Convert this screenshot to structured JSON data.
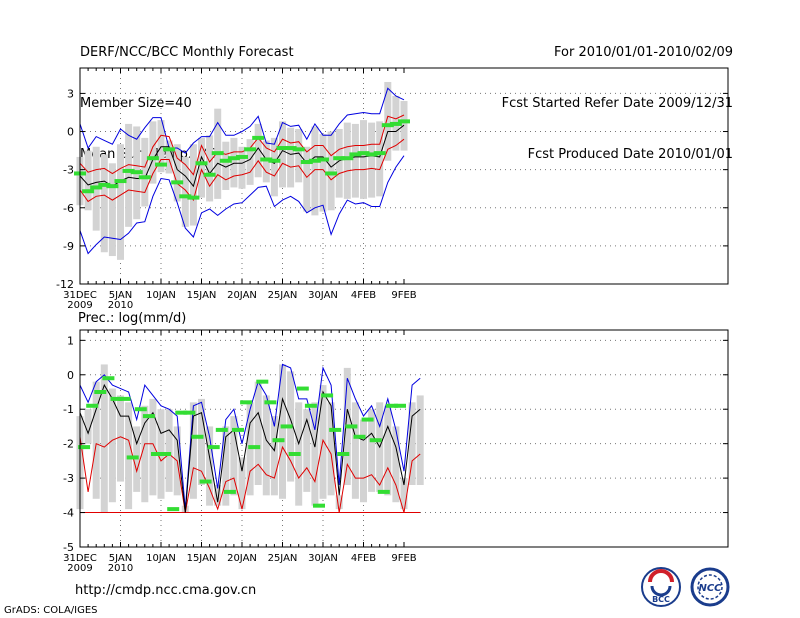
{
  "header": {
    "left": [
      "DERF/NCC/BCC Monthly Forecast",
      "Member Size=40",
      "Mean Surf. Temp.: °C"
    ],
    "right": [
      "For 2010/01/01-2010/02/09",
      "Fcst Started Refer Date 2009/12/31",
      "Fcst Produced Date 2010/01/01"
    ]
  },
  "footer": {
    "url": "http://cmdp.ncc.cma.gov.cn",
    "credit": "GrADS: COLA/IGES",
    "logo1_text": "BCC",
    "logo2_text": "NCC"
  },
  "colors": {
    "box": "#d3d3d3",
    "mean": "#000000",
    "spread": "#e00000",
    "extreme": "#0000e0",
    "marker": "#33dd33",
    "grid": "#777777"
  },
  "chart_data": [
    {
      "type": "box-ensemble",
      "title": "Mean Surf. Temp.: °C",
      "ylim": [
        -12,
        5
      ],
      "yticks": [
        3,
        0,
        -3,
        -6,
        -9,
        -12
      ],
      "xlabels": [
        {
          "day": 0,
          "line1": "31DEC",
          "line2": "2009"
        },
        {
          "day": 5,
          "line1": "5JAN",
          "line2": "2010"
        },
        {
          "day": 10,
          "line1": "10JAN",
          "line2": ""
        },
        {
          "day": 15,
          "line1": "15JAN",
          "line2": ""
        },
        {
          "day": 20,
          "line1": "20JAN",
          "line2": ""
        },
        {
          "day": 25,
          "line1": "25JAN",
          "line2": ""
        },
        {
          "day": 30,
          "line1": "30JAN",
          "line2": ""
        },
        {
          "day": 35,
          "line1": "4FEB",
          "line2": ""
        },
        {
          "day": 40,
          "line1": "9FEB",
          "line2": ""
        }
      ],
      "mean": [
        -3.5,
        -4.2,
        -4.0,
        -3.9,
        -4.3,
        -3.9,
        -3.6,
        -3.7,
        -3.7,
        -2.2,
        -1.2,
        -1.2,
        -3.0,
        -3.5,
        -4.3,
        -2.0,
        -3.3,
        -2.5,
        -2.8,
        -2.5,
        -2.5,
        -2.2,
        -1.3,
        -2.2,
        -2.5,
        -1.5,
        -1.8,
        -1.7,
        -2.5,
        -2.0,
        -2.0,
        -2.8,
        -2.3,
        -2.1,
        -2.0,
        -2.0,
        -1.9,
        -2.0,
        0.0,
        0.0,
        0.5
      ],
      "spread_high": [
        -2.5,
        -3.2,
        -3.0,
        -2.9,
        -3.3,
        -2.9,
        -2.6,
        -2.7,
        -2.8,
        -1.2,
        -0.3,
        -0.4,
        -2.1,
        -2.6,
        -3.4,
        -1.1,
        -2.4,
        -1.6,
        -1.8,
        -1.6,
        -1.6,
        -1.3,
        -0.5,
        -1.3,
        -1.6,
        -0.6,
        -0.9,
        -0.8,
        -1.6,
        -1.1,
        -1.1,
        -1.9,
        -1.4,
        -1.2,
        -1.1,
        -1.1,
        -1.0,
        -1.0,
        1.2,
        1.0,
        1.3
      ],
      "spread_low": [
        -4.6,
        -5.5,
        -5.1,
        -5.0,
        -5.4,
        -5.0,
        -4.6,
        -4.7,
        -4.8,
        -3.3,
        -2.2,
        -2.2,
        -4.1,
        -4.6,
        -5.4,
        -3.0,
        -4.3,
        -3.4,
        -3.8,
        -3.5,
        -3.4,
        -3.2,
        -2.3,
        -3.2,
        -3.5,
        -2.5,
        -2.8,
        -2.7,
        -3.6,
        -3.0,
        -3.0,
        -3.8,
        -3.3,
        -3.1,
        -3.0,
        -3.0,
        -2.9,
        -3.0,
        -1.4,
        -1.1,
        -0.6
      ],
      "ens_max": [
        0.6,
        -1.3,
        -0.4,
        -0.7,
        -1.0,
        0.2,
        -0.3,
        -0.6,
        0.3,
        1.1,
        1.1,
        -1.3,
        -1.3,
        -1.7,
        -0.9,
        -0.4,
        -0.4,
        0.7,
        -0.3,
        -0.3,
        0.0,
        0.4,
        1.2,
        -0.9,
        -1.0,
        0.7,
        0.4,
        0.5,
        -0.6,
        0.6,
        -0.3,
        -0.3,
        0.6,
        1.3,
        1.4,
        1.5,
        1.4,
        1.4,
        3.4,
        2.8,
        2.5
      ],
      "ens_min": [
        -7.8,
        -9.6,
        -8.9,
        -8.3,
        -8.4,
        -8.5,
        -8.0,
        -7.2,
        -7.1,
        -5.1,
        -3.7,
        -3.8,
        -5.6,
        -7.6,
        -8.3,
        -6.4,
        -6.1,
        -6.6,
        -6.1,
        -5.7,
        -5.6,
        -5.0,
        -4.4,
        -4.3,
        -5.9,
        -5.4,
        -5.1,
        -5.5,
        -6.4,
        -6.0,
        -5.8,
        -8.1,
        -6.5,
        -5.4,
        -5.7,
        -5.6,
        -5.9,
        -5.9,
        -4.0,
        -2.8,
        -1.9
      ],
      "box_top": [
        -2.0,
        -1.5,
        -1.2,
        -1.8,
        -2.5,
        -1.0,
        0.6,
        0.4,
        -0.5,
        0.8,
        0.9,
        -0.7,
        -1.0,
        -2.0,
        -1.0,
        -0.5,
        -0.3,
        1.8,
        -0.8,
        -0.5,
        -1.2,
        -0.6,
        0.6,
        -0.7,
        -0.5,
        0.8,
        0.3,
        0.2,
        -1.2,
        0.4,
        -0.2,
        0.0,
        0.2,
        0.7,
        0.6,
        0.9,
        0.7,
        0.8,
        3.9,
        2.8,
        2.4
      ],
      "box_bottom": [
        -5.8,
        -6.2,
        -7.8,
        -9.5,
        -9.8,
        -10.1,
        -7.5,
        -6.9,
        -5.9,
        -4.1,
        -3.2,
        -3.3,
        -5.5,
        -7.5,
        -7.4,
        -5.2,
        -5.5,
        -5.3,
        -4.6,
        -4.4,
        -4.5,
        -4.2,
        -3.6,
        -4.0,
        -5.1,
        -4.4,
        -4.4,
        -4.0,
        -6.3,
        -6.6,
        -6.3,
        -6.2,
        -5.2,
        -5.3,
        -5.2,
        -5.3,
        -5.2,
        -5.1,
        -2.3,
        -1.5,
        -1.5
      ],
      "marker": [
        -3.3,
        -4.7,
        -4.4,
        -4.2,
        -4.3,
        -3.9,
        -3.1,
        -3.2,
        -3.6,
        -2.1,
        -2.6,
        -1.4,
        -4.0,
        -5.1,
        -5.2,
        -2.5,
        -3.4,
        -1.7,
        -2.3,
        -2.1,
        -2.0,
        -1.4,
        -0.5,
        -2.2,
        -2.3,
        -1.3,
        -1.3,
        -1.4,
        -2.4,
        -2.3,
        -2.2,
        -3.3,
        -2.1,
        -2.1,
        -1.8,
        -1.7,
        -1.8,
        -1.7,
        0.5,
        0.6,
        0.8
      ]
    },
    {
      "type": "box-ensemble",
      "title": "Prec.: log(mm/d)",
      "ylim": [
        -5,
        1.3
      ],
      "yticks": [
        1,
        0,
        -1,
        -2,
        -3,
        -4,
        -5
      ],
      "xlabels": [
        {
          "day": 0,
          "line1": "31DEC",
          "line2": "2009"
        },
        {
          "day": 5,
          "line1": "5JAN",
          "line2": "2010"
        },
        {
          "day": 10,
          "line1": "10JAN",
          "line2": ""
        },
        {
          "day": 15,
          "line1": "15JAN",
          "line2": ""
        },
        {
          "day": 20,
          "line1": "20JAN",
          "line2": ""
        },
        {
          "day": 25,
          "line1": "25JAN",
          "line2": ""
        },
        {
          "day": 30,
          "line1": "30JAN",
          "line2": ""
        },
        {
          "day": 35,
          "line1": "4FEB",
          "line2": ""
        },
        {
          "day": 40,
          "line1": "9FEB",
          "line2": ""
        }
      ],
      "mean": [
        -1.1,
        -1.7,
        -1.0,
        -0.3,
        -0.7,
        -1.2,
        -1.2,
        -2.0,
        -1.4,
        -1.1,
        -1.7,
        -1.6,
        -1.9,
        -4.0,
        -1.2,
        -1.1,
        -2.4,
        -3.7,
        -1.8,
        -1.6,
        -2.8,
        -1.4,
        -1.1,
        -1.9,
        -2.2,
        -0.7,
        -1.3,
        -2.0,
        -1.3,
        -2.1,
        -0.5,
        -0.9,
        -3.5,
        -1.0,
        -1.8,
        -1.9,
        -1.7,
        -2.1,
        -1.5,
        -2.1,
        -3.2,
        -1.2,
        -1.0
      ],
      "spread_low": [
        -1.8,
        -3.4,
        -2.0,
        -2.1,
        -1.9,
        -1.8,
        -1.9,
        -2.8,
        -2.0,
        -2.0,
        -2.5,
        -2.3,
        -2.5,
        -4.0,
        -2.7,
        -2.8,
        -3.3,
        -3.9,
        -3.1,
        -3.0,
        -3.9,
        -2.8,
        -2.6,
        -2.9,
        -3.0,
        -2.1,
        -2.5,
        -3.0,
        -2.7,
        -3.1,
        -1.9,
        -2.3,
        -4.0,
        -2.6,
        -3.0,
        -3.0,
        -2.9,
        -3.2,
        -2.7,
        -3.2,
        -4.0,
        -2.5,
        -2.3
      ],
      "floor": -4.0,
      "ens_max": [
        -0.3,
        -0.8,
        -0.2,
        0.0,
        -0.3,
        -0.4,
        -0.5,
        -1.3,
        -0.3,
        -0.6,
        -0.9,
        -1.0,
        -1.2,
        -3.9,
        -0.9,
        -0.8,
        -1.8,
        -3.3,
        -1.3,
        -1.0,
        -2.0,
        -1.0,
        -0.2,
        -0.6,
        -1.5,
        0.3,
        0.2,
        -0.7,
        -0.7,
        -1.6,
        0.2,
        -0.3,
        -3.2,
        -0.1,
        -0.7,
        -1.2,
        -0.9,
        -1.5,
        -0.7,
        -1.6,
        -2.8,
        -0.3,
        -0.1
      ],
      "box_top": [
        -1.2,
        -1.0,
        -0.2,
        0.3,
        -0.4,
        -0.6,
        -0.8,
        -1.5,
        -0.9,
        -0.7,
        -1.0,
        -1.0,
        -1.5,
        -3.8,
        -0.8,
        -0.7,
        -1.5,
        -3.2,
        -1.5,
        -1.2,
        -2.4,
        -0.8,
        -0.2,
        -0.6,
        -1.2,
        0.3,
        0.1,
        -0.8,
        -1.0,
        -0.8,
        -0.3,
        -0.8,
        -3.5,
        0.2,
        -0.8,
        -1.3,
        -1.0,
        -0.8,
        -0.9,
        -1.5,
        -3.0,
        -0.8,
        -0.6
      ],
      "box_bottom": [
        -3.9,
        -2.0,
        -3.6,
        -4.0,
        -3.7,
        -3.1,
        -3.9,
        -3.4,
        -3.7,
        -3.5,
        -3.6,
        -3.4,
        -3.5,
        -4.0,
        -3.6,
        -3.2,
        -3.8,
        -3.8,
        -3.8,
        -3.5,
        -3.9,
        -3.5,
        -3.2,
        -3.5,
        -3.5,
        -3.6,
        -3.1,
        -3.8,
        -3.4,
        -3.8,
        -3.6,
        -3.5,
        -3.9,
        -3.2,
        -3.6,
        -3.7,
        -3.4,
        -3.4,
        -3.5,
        -3.7,
        -3.9,
        -3.2,
        -3.2
      ],
      "marker": [
        -2.1,
        -0.9,
        -0.5,
        -0.1,
        -0.7,
        -0.7,
        -2.4,
        -1.0,
        -1.2,
        -2.3,
        -2.3,
        -3.9,
        -1.1,
        -1.1,
        -1.8,
        -3.1,
        -2.1,
        -1.6,
        -3.4,
        -1.6,
        -0.8,
        -2.1,
        -0.2,
        -0.8,
        -1.9,
        -1.5,
        -2.3,
        -0.4,
        -0.9,
        -3.8,
        -0.6,
        -1.6,
        -2.3,
        -1.5,
        -1.8,
        -1.3,
        -1.9,
        -3.4,
        -0.9,
        -0.9
      ],
      "marker_days": [
        1,
        2,
        3,
        4,
        5,
        6,
        7,
        8,
        9,
        10,
        11,
        12,
        13,
        14,
        15,
        16,
        17,
        18,
        19,
        20,
        21,
        22,
        23,
        24,
        25,
        26,
        27,
        28,
        29,
        30,
        31,
        32,
        33,
        34,
        35,
        36,
        37,
        38,
        39,
        40
      ]
    }
  ]
}
